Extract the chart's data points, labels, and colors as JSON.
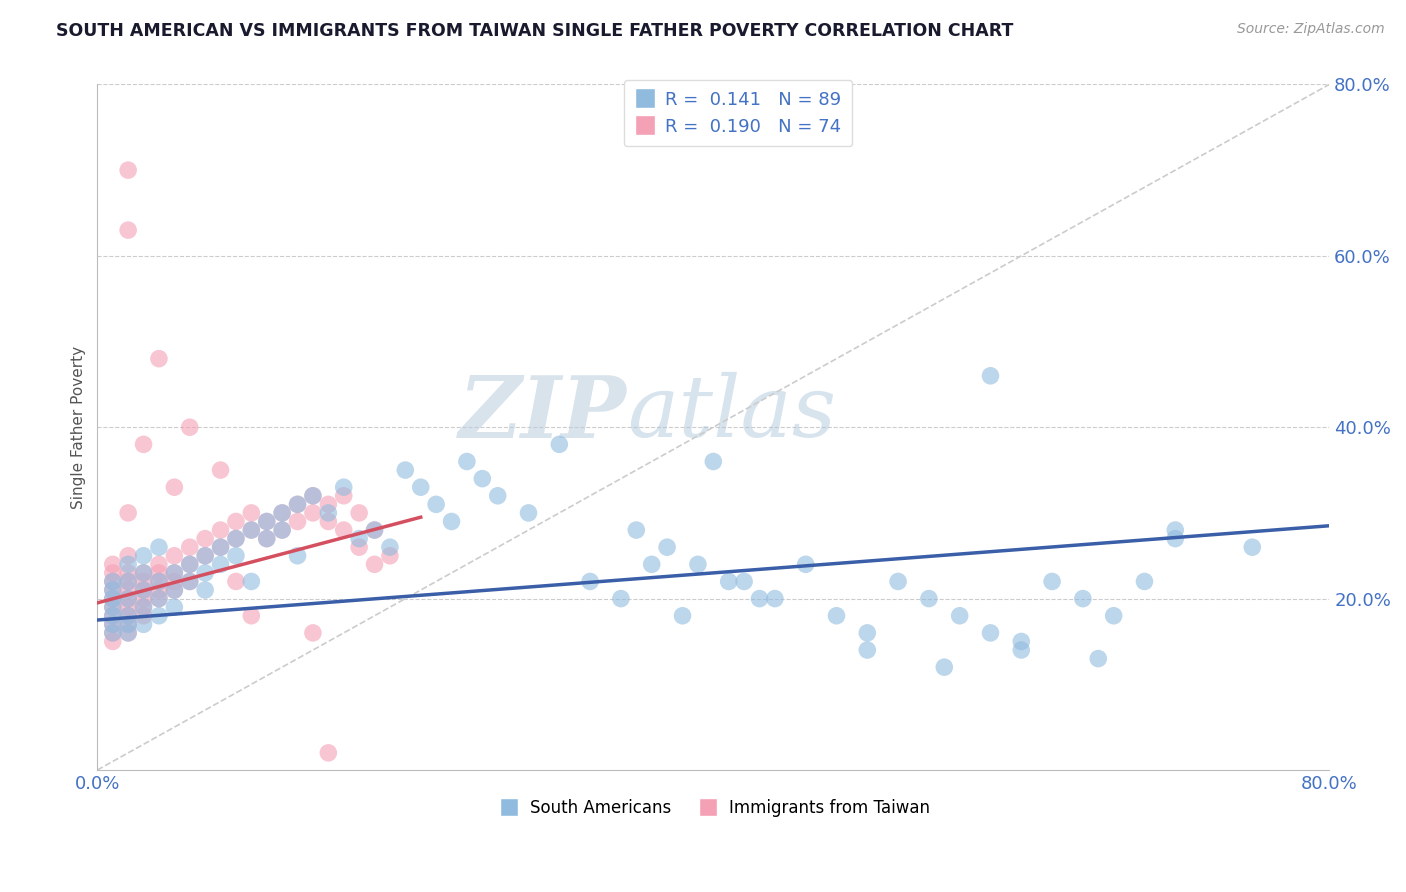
{
  "title": "SOUTH AMERICAN VS IMMIGRANTS FROM TAIWAN SINGLE FATHER POVERTY CORRELATION CHART",
  "source": "Source: ZipAtlas.com",
  "ylabel": "Single Father Poverty",
  "r_blue": 0.141,
  "n_blue": 89,
  "r_pink": 0.19,
  "n_pink": 74,
  "xlim": [
    0.0,
    0.8
  ],
  "ylim": [
    0.0,
    0.8
  ],
  "xticks": [
    0.0,
    0.1,
    0.2,
    0.3,
    0.4,
    0.5,
    0.6,
    0.7,
    0.8
  ],
  "yticks": [
    0.0,
    0.2,
    0.4,
    0.6,
    0.8
  ],
  "color_blue": "#90bbdf",
  "color_pink": "#f4a0b5",
  "trend_blue": "#3a5fa8",
  "trend_pink": "#d45060",
  "legend_label_blue": "South Americans",
  "legend_label_pink": "Immigrants from Taiwan",
  "axis_color": "#4472c4",
  "blue_trend_x": [
    0.0,
    0.8
  ],
  "blue_trend_y": [
    0.175,
    0.285
  ],
  "pink_trend_x": [
    0.0,
    0.21
  ],
  "pink_trend_y": [
    0.195,
    0.295
  ],
  "blue_x": [
    0.01,
    0.01,
    0.01,
    0.01,
    0.01,
    0.01,
    0.01,
    0.02,
    0.02,
    0.02,
    0.02,
    0.02,
    0.02,
    0.03,
    0.03,
    0.03,
    0.03,
    0.03,
    0.04,
    0.04,
    0.04,
    0.04,
    0.05,
    0.05,
    0.05,
    0.06,
    0.06,
    0.07,
    0.07,
    0.07,
    0.08,
    0.08,
    0.09,
    0.09,
    0.1,
    0.1,
    0.11,
    0.11,
    0.12,
    0.12,
    0.13,
    0.13,
    0.14,
    0.15,
    0.16,
    0.17,
    0.18,
    0.19,
    0.2,
    0.21,
    0.22,
    0.23,
    0.24,
    0.25,
    0.26,
    0.28,
    0.3,
    0.32,
    0.34,
    0.36,
    0.38,
    0.4,
    0.42,
    0.44,
    0.46,
    0.48,
    0.5,
    0.52,
    0.54,
    0.56,
    0.58,
    0.6,
    0.62,
    0.64,
    0.66,
    0.68,
    0.7,
    0.35,
    0.37,
    0.39,
    0.41,
    0.43,
    0.5,
    0.55,
    0.6,
    0.65,
    0.7,
    0.75,
    0.58
  ],
  "blue_y": [
    0.18,
    0.2,
    0.22,
    0.17,
    0.16,
    0.19,
    0.21,
    0.2,
    0.22,
    0.18,
    0.17,
    0.24,
    0.16,
    0.21,
    0.19,
    0.23,
    0.17,
    0.25,
    0.22,
    0.2,
    0.18,
    0.26,
    0.23,
    0.21,
    0.19,
    0.24,
    0.22,
    0.25,
    0.23,
    0.21,
    0.26,
    0.24,
    0.27,
    0.25,
    0.28,
    0.22,
    0.29,
    0.27,
    0.3,
    0.28,
    0.31,
    0.25,
    0.32,
    0.3,
    0.33,
    0.27,
    0.28,
    0.26,
    0.35,
    0.33,
    0.31,
    0.29,
    0.36,
    0.34,
    0.32,
    0.3,
    0.38,
    0.22,
    0.2,
    0.24,
    0.18,
    0.36,
    0.22,
    0.2,
    0.24,
    0.18,
    0.16,
    0.22,
    0.2,
    0.18,
    0.16,
    0.14,
    0.22,
    0.2,
    0.18,
    0.22,
    0.27,
    0.28,
    0.26,
    0.24,
    0.22,
    0.2,
    0.14,
    0.12,
    0.15,
    0.13,
    0.28,
    0.26,
    0.46
  ],
  "pink_x": [
    0.01,
    0.01,
    0.01,
    0.01,
    0.01,
    0.01,
    0.01,
    0.01,
    0.01,
    0.01,
    0.02,
    0.02,
    0.02,
    0.02,
    0.02,
    0.02,
    0.02,
    0.02,
    0.02,
    0.03,
    0.03,
    0.03,
    0.03,
    0.03,
    0.03,
    0.04,
    0.04,
    0.04,
    0.04,
    0.04,
    0.05,
    0.05,
    0.05,
    0.05,
    0.06,
    0.06,
    0.06,
    0.07,
    0.07,
    0.08,
    0.08,
    0.09,
    0.09,
    0.1,
    0.1,
    0.11,
    0.11,
    0.12,
    0.12,
    0.13,
    0.13,
    0.14,
    0.14,
    0.15,
    0.15,
    0.16,
    0.16,
    0.17,
    0.17,
    0.18,
    0.18,
    0.19,
    0.04,
    0.06,
    0.02,
    0.02,
    0.02,
    0.03,
    0.05,
    0.08,
    0.09,
    0.1,
    0.14,
    0.15
  ],
  "pink_y": [
    0.19,
    0.21,
    0.18,
    0.2,
    0.22,
    0.17,
    0.16,
    0.23,
    0.15,
    0.24,
    0.2,
    0.22,
    0.18,
    0.19,
    0.21,
    0.17,
    0.23,
    0.16,
    0.25,
    0.21,
    0.23,
    0.19,
    0.2,
    0.22,
    0.18,
    0.22,
    0.24,
    0.2,
    0.21,
    0.23,
    0.23,
    0.25,
    0.21,
    0.22,
    0.24,
    0.26,
    0.22,
    0.25,
    0.27,
    0.26,
    0.28,
    0.27,
    0.29,
    0.28,
    0.3,
    0.29,
    0.27,
    0.3,
    0.28,
    0.31,
    0.29,
    0.32,
    0.3,
    0.31,
    0.29,
    0.32,
    0.28,
    0.3,
    0.26,
    0.28,
    0.24,
    0.25,
    0.48,
    0.4,
    0.63,
    0.7,
    0.3,
    0.38,
    0.33,
    0.35,
    0.22,
    0.18,
    0.16,
    0.02
  ]
}
